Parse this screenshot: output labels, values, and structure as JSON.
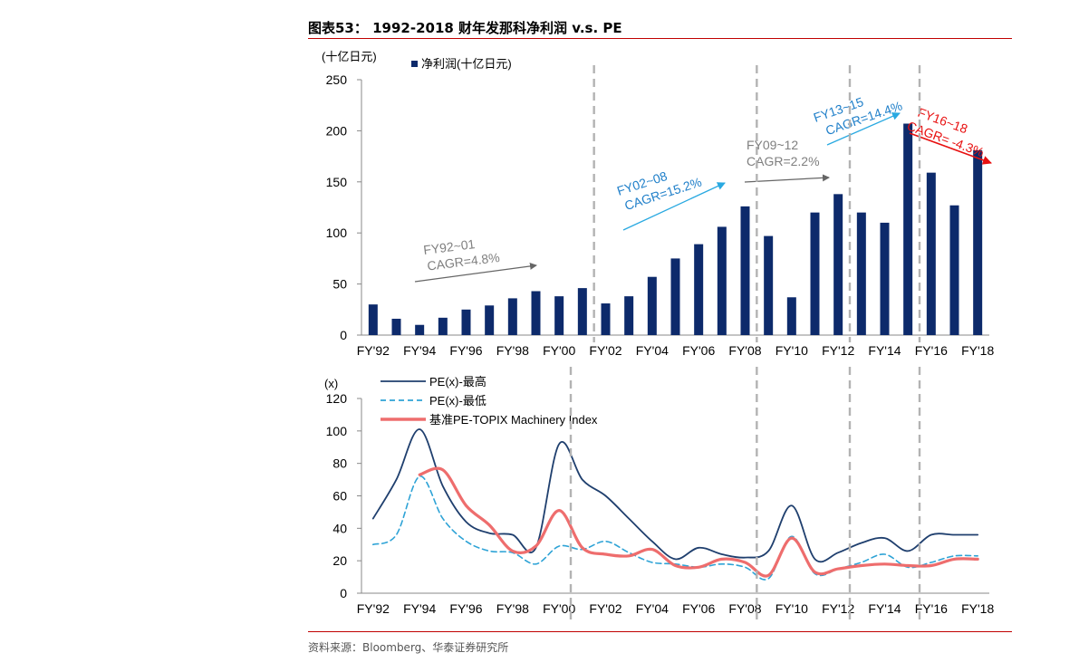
{
  "figure": {
    "title": "图表53：  1992-2018 财年发那科净利润  v.s. PE",
    "source": "资料来源：Bloomberg、华泰证券研究所",
    "colors": {
      "bar": "#0d2a6b",
      "pe_high": "#1f3f6e",
      "pe_low": "#2ea3d6",
      "benchmark": "#ee6d6d",
      "divider": "#b3b3b3",
      "rule": "#c00000",
      "arrow_gray": "#666666",
      "arrow_blue": "#29a9e1",
      "arrow_red": "#e81010"
    }
  },
  "chart_data": [
    {
      "type": "bar",
      "unit_label": "(十亿日元)",
      "legend": "净利润(十亿日元)",
      "ylim": [
        0,
        250
      ],
      "yticks": [
        "0",
        "50",
        "100",
        "150",
        "200",
        "250"
      ],
      "categories": [
        "FY'92",
        "FY'93",
        "FY'94",
        "FY'95",
        "FY'96",
        "FY'97",
        "FY'98",
        "FY'99",
        "FY'00",
        "FY'01",
        "FY'02",
        "FY'03",
        "FY'04",
        "FY'05",
        "FY'06",
        "FY'07",
        "FY'08",
        "FY'09",
        "FY'10",
        "FY'11",
        "FY'12",
        "FY'13",
        "FY'14",
        "FY'15",
        "FY'16",
        "FY'17",
        "FY'18"
      ],
      "tick_labels": [
        "FY'92",
        "FY'94",
        "FY'96",
        "FY'98",
        "FY'00",
        "FY'02",
        "FY'04",
        "FY'06",
        "FY'08",
        "FY'10",
        "FY'12",
        "FY'14",
        "FY'16",
        "FY'18"
      ],
      "series": [
        {
          "name": "净利润(十亿日元)",
          "values": [
            30,
            16,
            10,
            17,
            25,
            29,
            36,
            43,
            38,
            46,
            31,
            38,
            57,
            75,
            89,
            106,
            126,
            97,
            37,
            120,
            138,
            120,
            110,
            207,
            159,
            127,
            181
          ]
        }
      ],
      "dividers_after": [
        "FY'01",
        "FY'08",
        "FY'12",
        "FY'15"
      ],
      "annotations": [
        {
          "lines": [
            "FY92~01",
            "CAGR=4.8%"
          ],
          "color": "gray"
        },
        {
          "lines": [
            "FY02~08",
            "CAGR=15.2%"
          ],
          "color": "blue"
        },
        {
          "lines": [
            "FY09~12",
            "CAGR=2.2%"
          ],
          "color": "gray"
        },
        {
          "lines": [
            "FY13~15",
            "CAGR=14.4%"
          ],
          "color": "blue"
        },
        {
          "lines": [
            "FY16~18",
            "CAGR= -4.3%"
          ],
          "color": "red"
        }
      ]
    },
    {
      "type": "line",
      "unit_label": "(x)",
      "ylim": [
        0,
        120
      ],
      "yticks": [
        "0",
        "20",
        "40",
        "60",
        "80",
        "100",
        "120"
      ],
      "x": [
        1992,
        1993,
        1994,
        1995,
        1996,
        1997,
        1998,
        1999,
        2000,
        2001,
        2002,
        2003,
        2004,
        2005,
        2006,
        2007,
        2008,
        2009,
        2010,
        2011,
        2012,
        2013,
        2014,
        2015,
        2016,
        2017,
        2018
      ],
      "tick_labels": [
        "FY'92",
        "FY'94",
        "FY'96",
        "FY'98",
        "FY'00",
        "FY'02",
        "FY'04",
        "FY'06",
        "FY'08",
        "FY'10",
        "FY'12",
        "FY'14",
        "FY'16",
        "FY'18"
      ],
      "series": [
        {
          "name": "PE(x)-最高",
          "style": "solid",
          "values": [
            46,
            70,
            101,
            66,
            44,
            37,
            36,
            28,
            92,
            70,
            60,
            46,
            32,
            21,
            28,
            24,
            22,
            26,
            54,
            21,
            25,
            31,
            34,
            26,
            36,
            36,
            36
          ]
        },
        {
          "name": "PE(x)-最低",
          "style": "dashed",
          "values": [
            30,
            36,
            72,
            46,
            32,
            26,
            25,
            18,
            29,
            27,
            32,
            25,
            19,
            18,
            16,
            18,
            16,
            9,
            35,
            12,
            15,
            19,
            24,
            16,
            19,
            23,
            23
          ]
        },
        {
          "name": "基准PE-TOPIX Machinery Index",
          "style": "thick",
          "values": [
            null,
            null,
            73,
            76,
            54,
            42,
            26,
            29,
            51,
            28,
            24,
            23,
            27,
            17,
            16,
            21,
            19,
            11,
            34,
            13,
            15,
            17,
            18,
            17,
            17,
            21,
            21
          ]
        }
      ],
      "dividers_after": [
        "FY'00",
        "FY'08",
        "FY'12",
        "FY'15"
      ]
    }
  ]
}
